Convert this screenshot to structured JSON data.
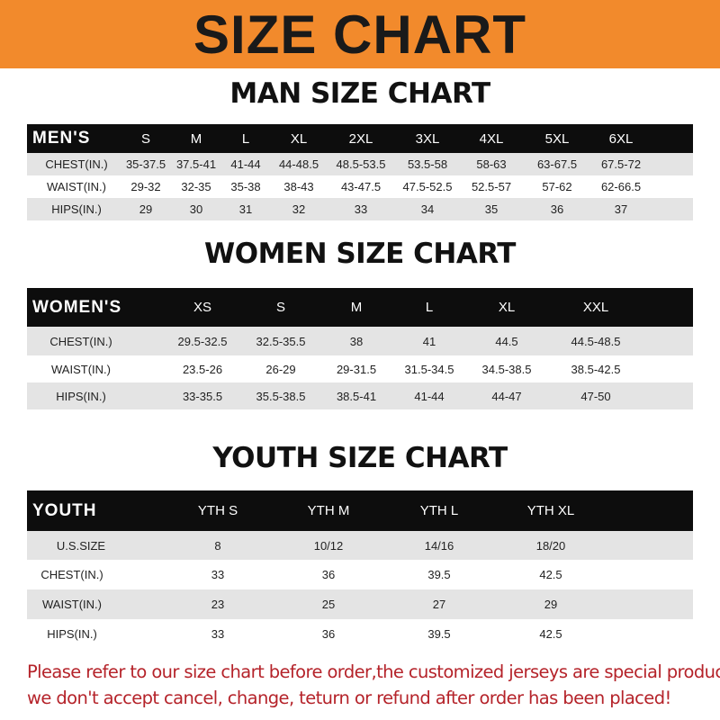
{
  "header": {
    "title": "SIZE CHART",
    "banner_color": "#f28a2c"
  },
  "men": {
    "title": "MAN SIZE CHART",
    "columns": [
      "MEN'S",
      "S",
      "M",
      "L",
      "XL",
      "2XL",
      "3XL",
      "4XL",
      "5XL",
      "6XL"
    ],
    "rows": [
      [
        "CHEST(IN.)",
        "35-37.5",
        "37.5-41",
        "41-44",
        "44-48.5",
        "48.5-53.5",
        "53.5-58",
        "58-63",
        "63-67.5",
        "67.5-72"
      ],
      [
        "WAIST(IN.)",
        "29-32",
        "32-35",
        "35-38",
        "38-43",
        "43-47.5",
        "47.5-52.5",
        "52.5-57",
        "57-62",
        "62-66.5"
      ],
      [
        "HIPS(IN.)",
        "29",
        "30",
        "31",
        "32",
        "33",
        "34",
        "35",
        "36",
        "37"
      ]
    ]
  },
  "women": {
    "title": "WOMEN SIZE CHART",
    "columns": [
      "WOMEN'S",
      "XS",
      "S",
      "M",
      "L",
      "XL",
      "XXL"
    ],
    "rows": [
      [
        "CHEST(IN.)",
        "29.5-32.5",
        "32.5-35.5",
        "38",
        "41",
        "44.5",
        "44.5-48.5"
      ],
      [
        "WAIST(IN.)",
        "23.5-26",
        "26-29",
        "29-31.5",
        "31.5-34.5",
        "34.5-38.5",
        "38.5-42.5"
      ],
      [
        "HIPS(IN.)",
        "33-35.5",
        "35.5-38.5",
        "38.5-41",
        "41-44",
        "44-47",
        "47-50"
      ]
    ]
  },
  "youth": {
    "title": "YOUTH SIZE CHART",
    "columns": [
      "YOUTH",
      "YTH S",
      "YTH M",
      "YTH L",
      "YTH XL"
    ],
    "rows": [
      [
        "U.S.SIZE",
        "8",
        "10/12",
        "14/16",
        "18/20"
      ],
      [
        "CHEST(IN.)",
        "33",
        "36",
        "39.5",
        "42.5"
      ],
      [
        "WAIST(IN.)",
        "23",
        "25",
        "27",
        "29"
      ],
      [
        "HIPS(IN.)",
        "33",
        "36",
        "39.5",
        "42.5"
      ]
    ]
  },
  "notice": {
    "line1": "Please refer to our size chart before order,the customized jerseys are special products,",
    "line2": "we don't accept cancel, change, teturn or refund after order has been placed!",
    "color": "#b5232a"
  }
}
